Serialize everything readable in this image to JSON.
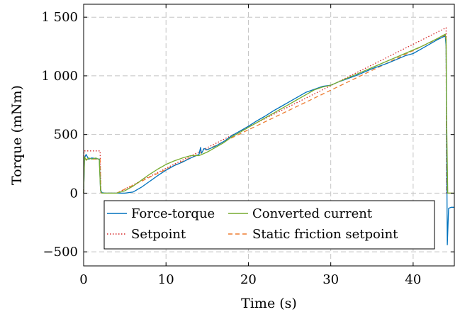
{
  "chart_data": {
    "type": "line",
    "title": "",
    "xlabel": "Time (s)",
    "ylabel": "Torque (mNm)",
    "xlim": [
      0,
      45
    ],
    "ylim": [
      -620,
      1610
    ],
    "grid": true,
    "legend_position": "bottom-right",
    "x_ticks": [
      {
        "value": 0,
        "label": "0"
      },
      {
        "value": 10,
        "label": "10"
      },
      {
        "value": 20,
        "label": "20"
      },
      {
        "value": 30,
        "label": "30"
      },
      {
        "value": 40,
        "label": "40"
      }
    ],
    "y_ticks": [
      {
        "value": -500,
        "label": "−500"
      },
      {
        "value": 0,
        "label": "0"
      },
      {
        "value": 500,
        "label": "500"
      },
      {
        "value": 1000,
        "label": "1 000"
      },
      {
        "value": 1500,
        "label": "1 500"
      }
    ],
    "series": [
      {
        "name": "Force-torque",
        "color": "#0072bd",
        "dash": "solid",
        "x": [
          0,
          0.1,
          0.3,
          0.6,
          1.0,
          1.5,
          1.9,
          2.05,
          2.2,
          2.6,
          3,
          4,
          5,
          6,
          7,
          8,
          9,
          10,
          11,
          12,
          13,
          14,
          14.2,
          14.3,
          14.4,
          14.6,
          15,
          16,
          17,
          18,
          19,
          20,
          21,
          22,
          23,
          24,
          25,
          26,
          27,
          28,
          29,
          30,
          31,
          32,
          33,
          34,
          35,
          36,
          37,
          38,
          39,
          40,
          41,
          42,
          43,
          43.9,
          44.0,
          44.05,
          44.15,
          44.3,
          44.6,
          45
        ],
        "y": [
          0,
          300,
          330,
          290,
          300,
          295,
          290,
          30,
          5,
          0,
          0,
          0,
          0,
          10,
          50,
          100,
          150,
          195,
          235,
          265,
          300,
          330,
          390,
          340,
          350,
          380,
          370,
          400,
          440,
          490,
          530,
          570,
          615,
          655,
          700,
          740,
          780,
          820,
          860,
          885,
          910,
          920,
          950,
          975,
          1000,
          1030,
          1060,
          1085,
          1110,
          1140,
          1170,
          1190,
          1230,
          1270,
          1310,
          1340,
          1250,
          600,
          -440,
          -130,
          -120,
          -120
        ]
      },
      {
        "name": "Converted current",
        "color": "#77ac30",
        "dash": "solid",
        "x": [
          0,
          0.1,
          0.3,
          0.6,
          1.0,
          1.5,
          1.9,
          2.05,
          2.2,
          2.6,
          3,
          4,
          5,
          6,
          7,
          8,
          9,
          10,
          11,
          12,
          13,
          14,
          15,
          16,
          17,
          18,
          19,
          20,
          21,
          22,
          23,
          24,
          25,
          26,
          27,
          28,
          29,
          30,
          31,
          32,
          33,
          34,
          35,
          36,
          37,
          38,
          39,
          40,
          41,
          42,
          43,
          43.9,
          44.0,
          44.05,
          44.2,
          44.5,
          45
        ],
        "y": [
          0,
          310,
          280,
          300,
          290,
          300,
          285,
          20,
          0,
          0,
          0,
          0,
          20,
          60,
          110,
          160,
          205,
          245,
          275,
          300,
          320,
          320,
          350,
          390,
          430,
          480,
          520,
          560,
          600,
          640,
          680,
          720,
          760,
          800,
          840,
          880,
          905,
          920,
          950,
          980,
          1010,
          1040,
          1070,
          1100,
          1130,
          1160,
          1190,
          1220,
          1250,
          1285,
          1320,
          1355,
          1300,
          700,
          0,
          0,
          0
        ]
      },
      {
        "name": "Setpoint",
        "color": "#d62728",
        "dash": "dotted",
        "x": [
          0,
          0.05,
          2.0,
          2.1,
          4.0,
          44.0,
          44.05,
          45
        ],
        "y": [
          0,
          360,
          360,
          0,
          0,
          1410,
          0,
          0
        ]
      },
      {
        "name": "Static friction setpoint",
        "color": "#ed7d31",
        "dash": "dashed",
        "x": [
          0,
          0.05,
          2.0,
          2.1,
          4.0,
          44.0,
          44.05,
          45
        ],
        "y": [
          0,
          290,
          290,
          0,
          0,
          1350,
          0,
          0
        ]
      }
    ]
  }
}
